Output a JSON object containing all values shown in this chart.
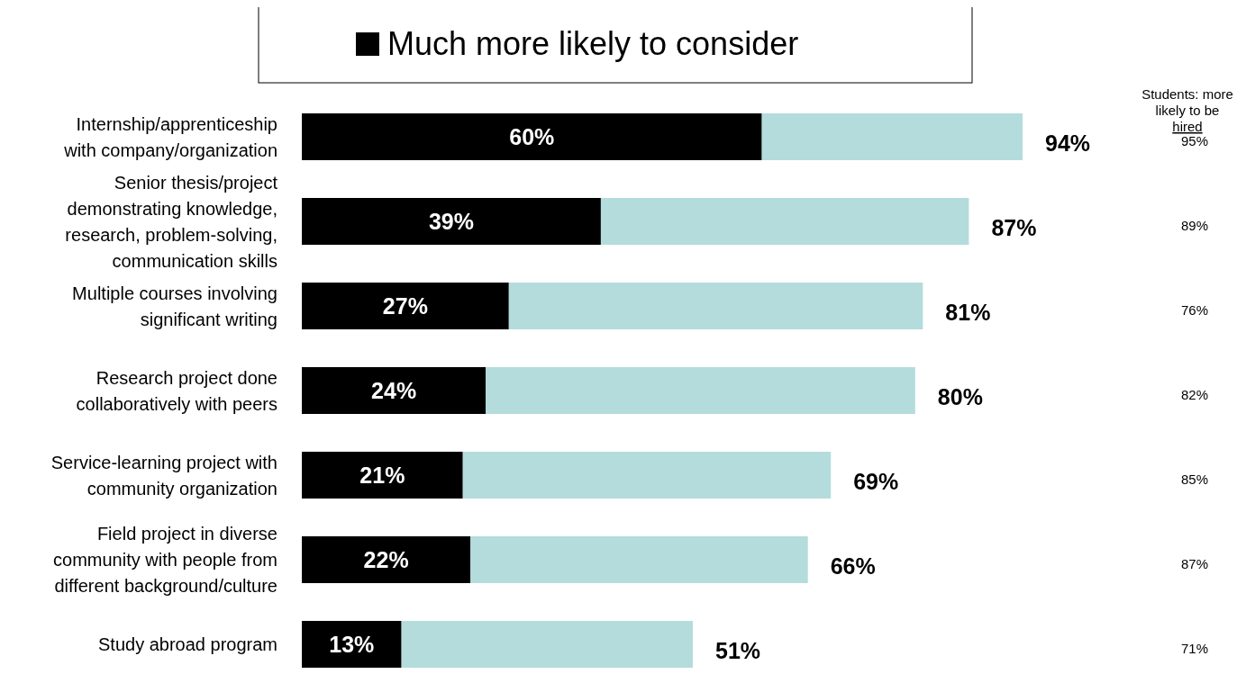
{
  "chart_data": {
    "type": "bar",
    "orientation": "horizontal",
    "stacked": true,
    "categories": [
      "Internship/apprenticeship with company/organization",
      "Senior thesis/project demonstrating knowledge, research, problem-solving, communication skills",
      "Multiple courses involving significant writing",
      "Research project done collaboratively with peers",
      "Service-learning project with community organization",
      "Field project in diverse community with people from different background/culture",
      "Study abroad program"
    ],
    "series": [
      {
        "name": "Much more likely to consider",
        "color": "#000000",
        "values": [
          60,
          39,
          27,
          24,
          21,
          22,
          13
        ],
        "value_labels": [
          "60%",
          "39%",
          "27%",
          "24%",
          "21%",
          "22%",
          "13%"
        ]
      },
      {
        "color": "#b4dcdc",
        "values": [
          34,
          48,
          54,
          56,
          48,
          44,
          38
        ]
      }
    ],
    "totals": [
      "94%",
      "87%",
      "81%",
      "80%",
      "69%",
      "66%",
      "51%"
    ],
    "legend": "top",
    "annotations": [
      "Students: more likely to be hired",
      "95%",
      "89%",
      "76%",
      "82%",
      "85%",
      "87%",
      "71%"
    ]
  }
}
